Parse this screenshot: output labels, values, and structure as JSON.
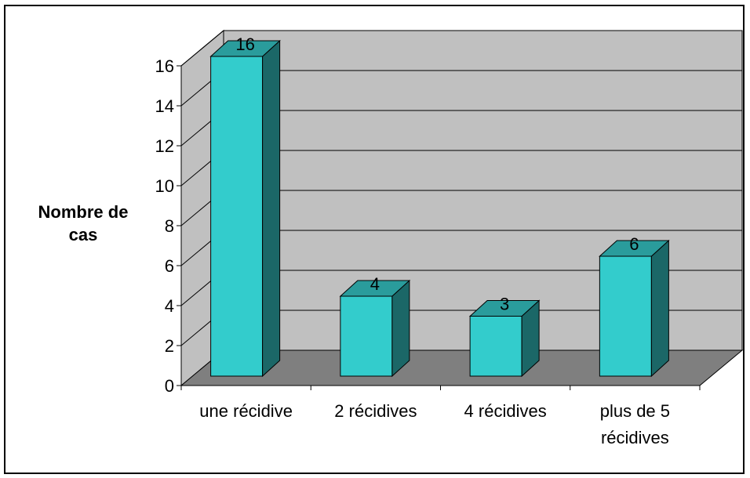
{
  "chart_data": {
    "type": "bar",
    "title": "",
    "xlabel": "",
    "ylabel": "Nombre de cas",
    "categories": [
      "une récidive",
      "2 récidives",
      "4 récidives",
      "plus de 5 récidives"
    ],
    "category_lines": [
      [
        "une récidive"
      ],
      [
        "2 récidives"
      ],
      [
        "4 récidives"
      ],
      [
        "plus de 5",
        "récidives"
      ]
    ],
    "values": [
      16,
      4,
      3,
      6
    ],
    "data_labels": [
      "16",
      "4",
      "3",
      "6"
    ],
    "ylim": [
      0,
      16
    ],
    "yticks": [
      0,
      2,
      4,
      6,
      8,
      10,
      12,
      14,
      16
    ],
    "ytick_labels": [
      "0",
      "2",
      "4",
      "6",
      "8",
      "10",
      "12",
      "14",
      "16"
    ],
    "grid": true,
    "legend": "none",
    "style": "3d-column",
    "colors": {
      "bar_front": "#33CCCC",
      "bar_top": "#2A9C9C",
      "bar_side": "#1B6767",
      "wall": "#C0C0C0",
      "floor": "#7F7F7F"
    }
  }
}
